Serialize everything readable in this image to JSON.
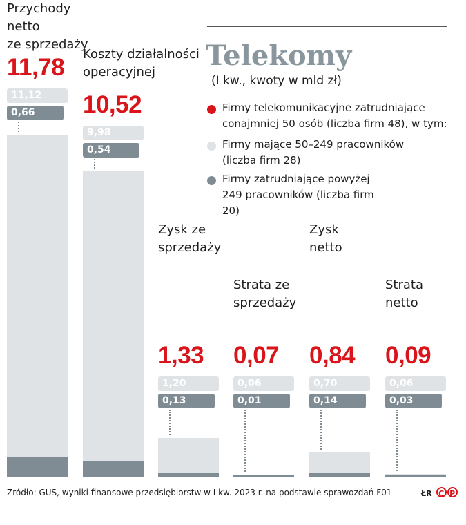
{
  "title": "Telekomy",
  "subtitle": "(I kw., kwoty w mld zł)",
  "legend": [
    {
      "text": "Firmy telekomunikacyjne zatrudniające conajmniej 50 osób (liczba firm 48), w tym:",
      "color": "#d9141a"
    },
    {
      "text": "Firmy mające 50–249 pracowników (liczba firm 28)",
      "color": "#dfe3e6"
    },
    {
      "text": "Firmy zatrudniające powyżej 249 pracowników (liczba firm 20)",
      "color": "#7f8c93"
    }
  ],
  "source": "Źródło: GUS, wyniki finansowe przedsiębiorstw w I kw.  2023 r. na podstawie sprawozdań F01",
  "credit": "ŁR",
  "logo_text": "CP",
  "colors": {
    "total": "#d9141a",
    "medium": "#dfe3e6",
    "large": "#7f8c93"
  },
  "chart_data": {
    "type": "bar",
    "categories": [
      "Przychody netto ze sprzedaży",
      "Koszty działalności operacyjnej",
      "Zysk ze sprzedaży",
      "Strata ze sprzedaży",
      "Zysk netto",
      "Strata netto"
    ],
    "labels_display": {
      "c0": "Przychody netto\nze sprzedaży",
      "c1": "Koszty działalności\noperacyjnej",
      "c2": "Zysk ze\nsprzedaży",
      "c3": "Strata ze\nsprzedaży",
      "c4": "Zysk\nnetto",
      "c5": "Strata\nnetto"
    },
    "series": [
      {
        "name": "Firmy telekomunikacyjne zatrudniające conajmniej 50 osób (liczba firm 48)",
        "values": [
          11.78,
          10.52,
          1.33,
          0.07,
          0.84,
          0.09
        ]
      },
      {
        "name": "Firmy mające 50–249 pracowników (liczba firm 28)",
        "values": [
          11.12,
          9.98,
          1.2,
          0.06,
          0.7,
          0.06
        ]
      },
      {
        "name": "Firmy zatrudniające powyżej 249 pracowników (liczba firm 20)",
        "values": [
          0.66,
          0.54,
          0.13,
          0.01,
          0.14,
          0.03
        ]
      }
    ],
    "value_labels": {
      "total": [
        "11,78",
        "10,52",
        "1,33",
        "0,07",
        "0,84",
        "0,09"
      ],
      "medium": [
        "11,12",
        "9,98",
        "1,20",
        "0,06",
        "0,70",
        "0,06"
      ],
      "large": [
        "0,66",
        "0,54",
        "0,13",
        "0,01",
        "0,14",
        "0,03"
      ]
    }
  }
}
